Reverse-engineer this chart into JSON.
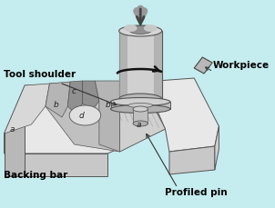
{
  "bg_color": "#c5ecee",
  "labels": {
    "tool_shoulder": "Tool shoulder",
    "workpiece": "Workpiece",
    "backing_bar": "Backing bar",
    "profiled_pin": "Profiled pin"
  },
  "colors": {
    "text_color": "#000000",
    "block_top": "#e8e8e8",
    "block_front": "#c8c8c8",
    "block_right": "#d0d0d0",
    "block_left": "#b8b8b8",
    "weld_strip": "#b0b0b0",
    "zone_a": "#d5d5d5",
    "zone_b": "#aaaaaa",
    "zone_c": "#888888",
    "zone_d": "#dedede",
    "tool_cyl": "#b8b8b8",
    "tool_light": "#d8d8d8",
    "tool_dark": "#909090",
    "shoulder_disk": "#c0c0c0",
    "pin": "#b5b5b5",
    "wp_arrow": "#b0b0b0",
    "edge": "#555555",
    "arrow": "#333333"
  }
}
